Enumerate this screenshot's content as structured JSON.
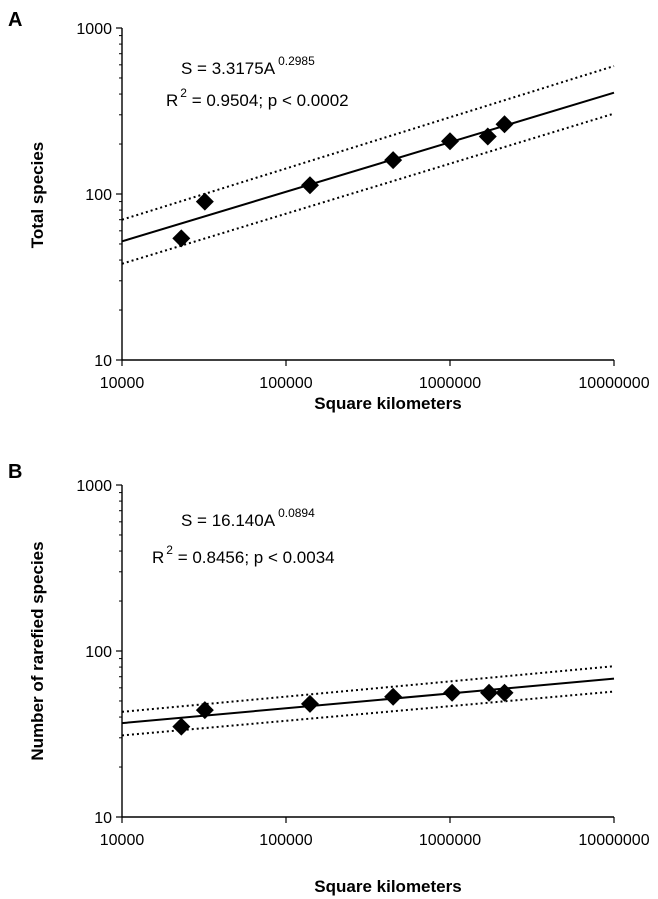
{
  "chart_data": [
    {
      "type": "scatter",
      "panel_label": "A",
      "xlabel": "Square kilometers",
      "ylabel": "Total species",
      "xscale": "log",
      "yscale": "log",
      "xlim": [
        10000,
        10000000
      ],
      "ylim": [
        10,
        1000
      ],
      "xticks": [
        "10000",
        "100000",
        "1000000",
        "10000000"
      ],
      "yticks": [
        "10",
        "100",
        "1000"
      ],
      "equation": {
        "prefix": "S = 3.3175A",
        "exponent": "0.2985"
      },
      "stats": {
        "r": "R",
        "r_sup": "2",
        "rest": " = 0.9504; p < 0.0002"
      },
      "fit": {
        "a": 3.3175,
        "b": 0.2985
      },
      "points": [
        {
          "x": 23000,
          "y": 54
        },
        {
          "x": 32000,
          "y": 90
        },
        {
          "x": 140000,
          "y": 113
        },
        {
          "x": 450000,
          "y": 160
        },
        {
          "x": 1000000,
          "y": 208
        },
        {
          "x": 1700000,
          "y": 222
        },
        {
          "x": 2150000,
          "y": 263
        }
      ],
      "ci": {
        "upper": [
          [
            10000,
            70
          ],
          [
            10000000,
            590
          ]
        ],
        "lower": [
          [
            10000,
            38
          ],
          [
            10000000,
            305
          ]
        ]
      },
      "grid": false
    },
    {
      "type": "scatter",
      "panel_label": "B",
      "xlabel": "Square kilometers",
      "ylabel": "Number of rarefied species",
      "xscale": "log",
      "yscale": "log",
      "xlim": [
        10000,
        10000000
      ],
      "ylim": [
        10,
        1000
      ],
      "xticks": [
        "10000",
        "100000",
        "1000000",
        "10000000"
      ],
      "yticks": [
        "10",
        "100",
        "1000"
      ],
      "equation": {
        "prefix": "S = 16.140A",
        "exponent": "0.0894"
      },
      "stats": {
        "r": "R",
        "r_sup": "2",
        "rest": " = 0.8456; p < 0.0034"
      },
      "fit": {
        "a": 16.14,
        "b": 0.0894
      },
      "points": [
        {
          "x": 23000,
          "y": 35
        },
        {
          "x": 32000,
          "y": 44
        },
        {
          "x": 140000,
          "y": 48
        },
        {
          "x": 450000,
          "y": 53
        },
        {
          "x": 1030000,
          "y": 56
        },
        {
          "x": 1730000,
          "y": 56
        },
        {
          "x": 2150000,
          "y": 56
        }
      ],
      "ci": {
        "upper": [
          [
            10000,
            43
          ],
          [
            10000000,
            81
          ]
        ],
        "lower": [
          [
            10000,
            31
          ],
          [
            10000000,
            57
          ]
        ]
      },
      "grid": false
    }
  ]
}
